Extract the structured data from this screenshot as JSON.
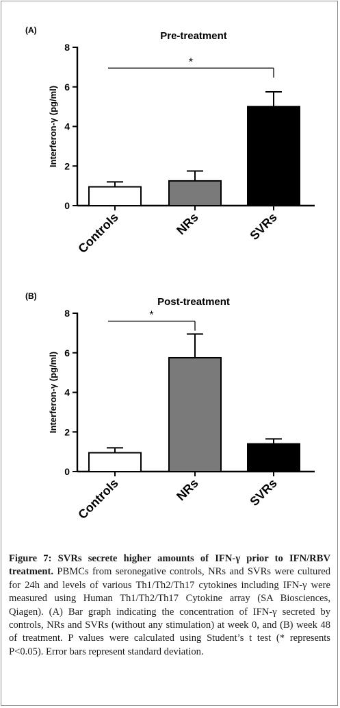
{
  "chart_data": [
    {
      "type": "bar",
      "panel_label": "(A)",
      "title": "Pre-treatment",
      "ylabel": "Interferon-γ (pg/ml)",
      "ylim": [
        0,
        8
      ],
      "yticks": [
        "0",
        "2",
        "4",
        "6",
        "8"
      ],
      "categories": [
        "Controls",
        "NRs",
        "SVRs"
      ],
      "values": [
        0.95,
        1.25,
        5.0
      ],
      "errors": [
        0.25,
        0.5,
        0.75
      ],
      "colors": [
        "#ffffff",
        "#7a7a7a",
        "#000000"
      ],
      "significance": {
        "from": 0,
        "to": 2,
        "label": "*",
        "y": 6.95
      }
    },
    {
      "type": "bar",
      "panel_label": "(B)",
      "title": "Post-treatment",
      "ylabel": "Interferon-γ (pg/ml)",
      "ylim": [
        0,
        8
      ],
      "yticks": [
        "0",
        "2",
        "4",
        "6",
        "8"
      ],
      "categories": [
        "Controls",
        "NRs",
        "SVRs"
      ],
      "values": [
        0.95,
        5.75,
        1.4
      ],
      "errors": [
        0.25,
        1.2,
        0.25
      ],
      "colors": [
        "#ffffff",
        "#7a7a7a",
        "#000000"
      ],
      "significance": {
        "from": 0,
        "to": 1,
        "label": "*",
        "y": 7.6
      }
    }
  ],
  "caption": {
    "bold": "Figure 7: SVRs secrete higher amounts of IFN-γ prior to IFN/RBV treatment.",
    "text": " PBMCs from seronegative controls, NRs and SVRs were cultured for 24h and levels of various Th1/Th2/Th17 cytokines including IFN-γ were measured using Human Th1/Th2/Th17 Cytokine array (SA Biosciences, Qiagen). (A) Bar graph indicating the concentration of IFN-γ secreted by controls, NRs and SVRs (without any stimulation) at week 0, and (B) week 48 of treatment. P values were calculated using Student’s t test (* represents P<0.05). Error bars represent standard deviation."
  }
}
